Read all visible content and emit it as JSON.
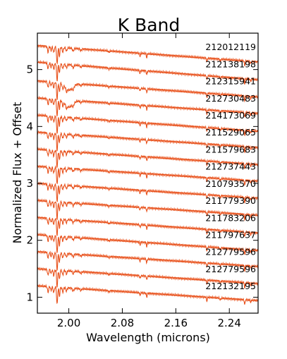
{
  "chart_data": {
    "type": "line",
    "title": "K Band",
    "xlabel": "Wavelength (microns)",
    "ylabel": "Normalized Flux + Offset",
    "xlim": [
      1.953,
      2.283
    ],
    "ylim": [
      0.72,
      5.64
    ],
    "xticks": [
      2.0,
      2.08,
      2.16,
      2.24
    ],
    "xtick_labels": [
      "2.00",
      "2.08",
      "2.16",
      "2.24"
    ],
    "yticks": [
      1,
      2,
      3,
      4,
      5
    ],
    "ytick_labels": [
      "1",
      "2",
      "3",
      "4",
      "5"
    ],
    "grid": false,
    "legend": "none",
    "line_color": "#e8501a",
    "series": [
      {
        "label": "212012119",
        "offset": 5.3,
        "start": 1.12,
        "end": 0.835
      },
      {
        "label": "212138198",
        "offset": 5.0,
        "start": 1.13,
        "end": 0.82
      },
      {
        "label": "212315941",
        "offset": 4.7,
        "start": 1.1,
        "end": 0.82
      },
      {
        "label": "212730483",
        "offset": 4.4,
        "start": 1.1,
        "end": 0.83
      },
      {
        "label": "214173069",
        "offset": 4.1,
        "start": 1.1,
        "end": 0.815
      },
      {
        "label": "211529065",
        "offset": 3.8,
        "start": 1.1,
        "end": 0.83
      },
      {
        "label": "211579683",
        "offset": 3.5,
        "start": 1.1,
        "end": 0.83
      },
      {
        "label": "212737443",
        "offset": 3.2,
        "start": 1.1,
        "end": 0.84
      },
      {
        "label": "210793570",
        "offset": 2.9,
        "start": 1.1,
        "end": 0.84
      },
      {
        "label": "211779390",
        "offset": 2.6,
        "start": 1.1,
        "end": 0.84
      },
      {
        "label": "211783206",
        "offset": 2.3,
        "start": 1.1,
        "end": 0.83
      },
      {
        "label": "211797637",
        "offset": 2.0,
        "start": 1.1,
        "end": 0.82
      },
      {
        "label": "212779596",
        "offset": 1.7,
        "start": 1.1,
        "end": 0.84
      },
      {
        "label": "212779596",
        "offset": 1.4,
        "start": 1.1,
        "end": 0.84
      },
      {
        "label": "212132195",
        "offset": 1.1,
        "start": 1.1,
        "end": 0.84
      }
    ]
  }
}
